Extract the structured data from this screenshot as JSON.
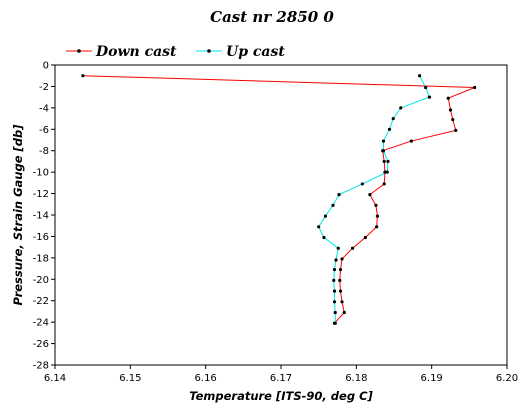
{
  "chart_data": {
    "type": "line",
    "title": "Cast nr 2850 0",
    "xlabel": "Temperature [ITS-90, deg C]",
    "ylabel": "Pressure, Strain Gauge [db]",
    "xlim": [
      6.14,
      6.2
    ],
    "ylim": [
      -28,
      0
    ],
    "x_ticks": [
      "6.14",
      "6.15",
      "6.16",
      "6.17",
      "6.18",
      "6.19",
      "6.20"
    ],
    "y_ticks": [
      "0",
      "-2",
      "-4",
      "-6",
      "-8",
      "-10",
      "-12",
      "-14",
      "-16",
      "-18",
      "-20",
      "-22",
      "-24",
      "-26",
      "-28"
    ],
    "legend_position": "top-left",
    "series": [
      {
        "name": "Down cast",
        "color": "#ff0000",
        "marker_color": "#000000",
        "points": [
          [
            6.1437,
            -1.0
          ],
          [
            6.1957,
            -2.1
          ],
          [
            6.1922,
            -3.1
          ],
          [
            6.1925,
            -4.2
          ],
          [
            6.1928,
            -5.1
          ],
          [
            6.1932,
            -6.1
          ],
          [
            6.1873,
            -7.1
          ],
          [
            6.1835,
            -8.0
          ],
          [
            6.1837,
            -9.0
          ],
          [
            6.1838,
            -10.0
          ],
          [
            6.1837,
            -11.1
          ],
          [
            6.1818,
            -12.1
          ],
          [
            6.1826,
            -13.1
          ],
          [
            6.1828,
            -14.1
          ],
          [
            6.1827,
            -15.1
          ],
          [
            6.1812,
            -16.1
          ],
          [
            6.1795,
            -17.1
          ],
          [
            6.1781,
            -18.1
          ],
          [
            6.1779,
            -19.1
          ],
          [
            6.1778,
            -20.1
          ],
          [
            6.1779,
            -21.1
          ],
          [
            6.1781,
            -22.1
          ],
          [
            6.1784,
            -23.1
          ],
          [
            6.1771,
            -24.1
          ]
        ]
      },
      {
        "name": "Up cast",
        "color": "#00e5e5",
        "marker_color": "#000000",
        "points": [
          [
            6.1884,
            -1.0
          ],
          [
            6.1892,
            -2.1
          ],
          [
            6.1897,
            -3.0
          ],
          [
            6.1859,
            -4.0
          ],
          [
            6.1849,
            -5.0
          ],
          [
            6.1844,
            -6.0
          ],
          [
            6.1836,
            -7.1
          ],
          [
            6.1836,
            -8.0
          ],
          [
            6.1842,
            -9.0
          ],
          [
            6.1841,
            -10.0
          ],
          [
            6.1808,
            -11.1
          ],
          [
            6.1777,
            -12.1
          ],
          [
            6.1769,
            -13.1
          ],
          [
            6.1759,
            -14.1
          ],
          [
            6.175,
            -15.1
          ],
          [
            6.1757,
            -16.1
          ],
          [
            6.1776,
            -17.1
          ],
          [
            6.1773,
            -18.2
          ],
          [
            6.1771,
            -19.1
          ],
          [
            6.177,
            -20.1
          ],
          [
            6.1771,
            -21.1
          ],
          [
            6.1771,
            -22.1
          ],
          [
            6.1772,
            -23.1
          ],
          [
            6.1772,
            -24.1
          ]
        ]
      }
    ]
  }
}
